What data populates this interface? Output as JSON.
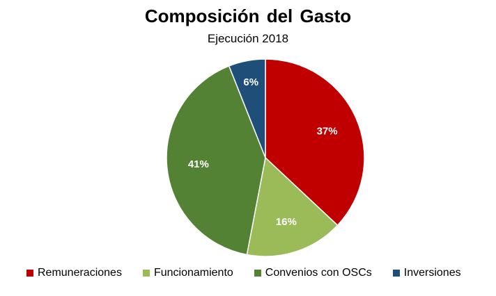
{
  "chart_data": {
    "type": "pie",
    "title": "Composición  del Gasto",
    "subtitle": "Ejecución 2018",
    "categories": [
      "Remuneraciones",
      "Funcionamiento",
      "Convenios con OSCs",
      "Inversiones"
    ],
    "values": [
      37,
      16,
      41,
      6
    ],
    "labels": [
      "37%",
      "16%",
      "41%",
      "6%"
    ],
    "colors": [
      "#C00000",
      "#9BBB59",
      "#548235",
      "#1F4E79"
    ],
    "label_colors": [
      "#ffffff",
      "#ffffff",
      "#ffffff",
      "#ffffff"
    ],
    "start_angle_deg": 0,
    "direction": "clockwise",
    "legend_position": "bottom"
  }
}
